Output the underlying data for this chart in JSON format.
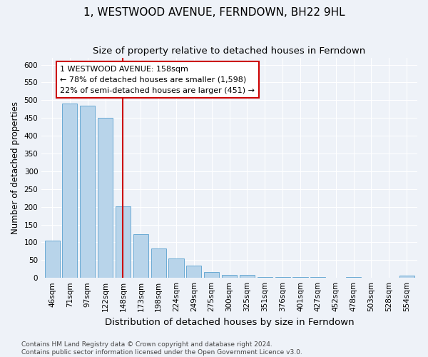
{
  "title": "1, WESTWOOD AVENUE, FERNDOWN, BH22 9HL",
  "subtitle": "Size of property relative to detached houses in Ferndown",
  "xlabel": "Distribution of detached houses by size in Ferndown",
  "ylabel": "Number of detached properties",
  "categories": [
    "46sqm",
    "71sqm",
    "97sqm",
    "122sqm",
    "148sqm",
    "173sqm",
    "198sqm",
    "224sqm",
    "249sqm",
    "275sqm",
    "300sqm",
    "325sqm",
    "351sqm",
    "376sqm",
    "401sqm",
    "427sqm",
    "452sqm",
    "478sqm",
    "503sqm",
    "528sqm",
    "554sqm"
  ],
  "values": [
    105,
    490,
    485,
    450,
    202,
    123,
    82,
    55,
    35,
    16,
    9,
    8,
    3,
    3,
    3,
    3,
    1,
    3,
    1,
    1,
    6
  ],
  "bar_color": "#b8d4ea",
  "bar_edge_color": "#6aaad4",
  "annotation_line1": "1 WESTWOOD AVENUE: 158sqm",
  "annotation_line2": "← 78% of detached houses are smaller (1,598)",
  "annotation_line3": "22% of semi-detached houses are larger (451) →",
  "annotation_box_color": "white",
  "annotation_box_edge_color": "#cc0000",
  "vline_index": 4,
  "vline_color": "#cc0000",
  "ylim": [
    0,
    620
  ],
  "yticks": [
    0,
    50,
    100,
    150,
    200,
    250,
    300,
    350,
    400,
    450,
    500,
    550,
    600
  ],
  "footnote": "Contains HM Land Registry data © Crown copyright and database right 2024.\nContains public sector information licensed under the Open Government Licence v3.0.",
  "background_color": "#eef2f8",
  "grid_color": "white",
  "title_fontsize": 11,
  "subtitle_fontsize": 9.5,
  "ylabel_fontsize": 8.5,
  "xlabel_fontsize": 9.5,
  "tick_fontsize": 7.5,
  "annot_fontsize": 8,
  "footnote_fontsize": 6.5
}
